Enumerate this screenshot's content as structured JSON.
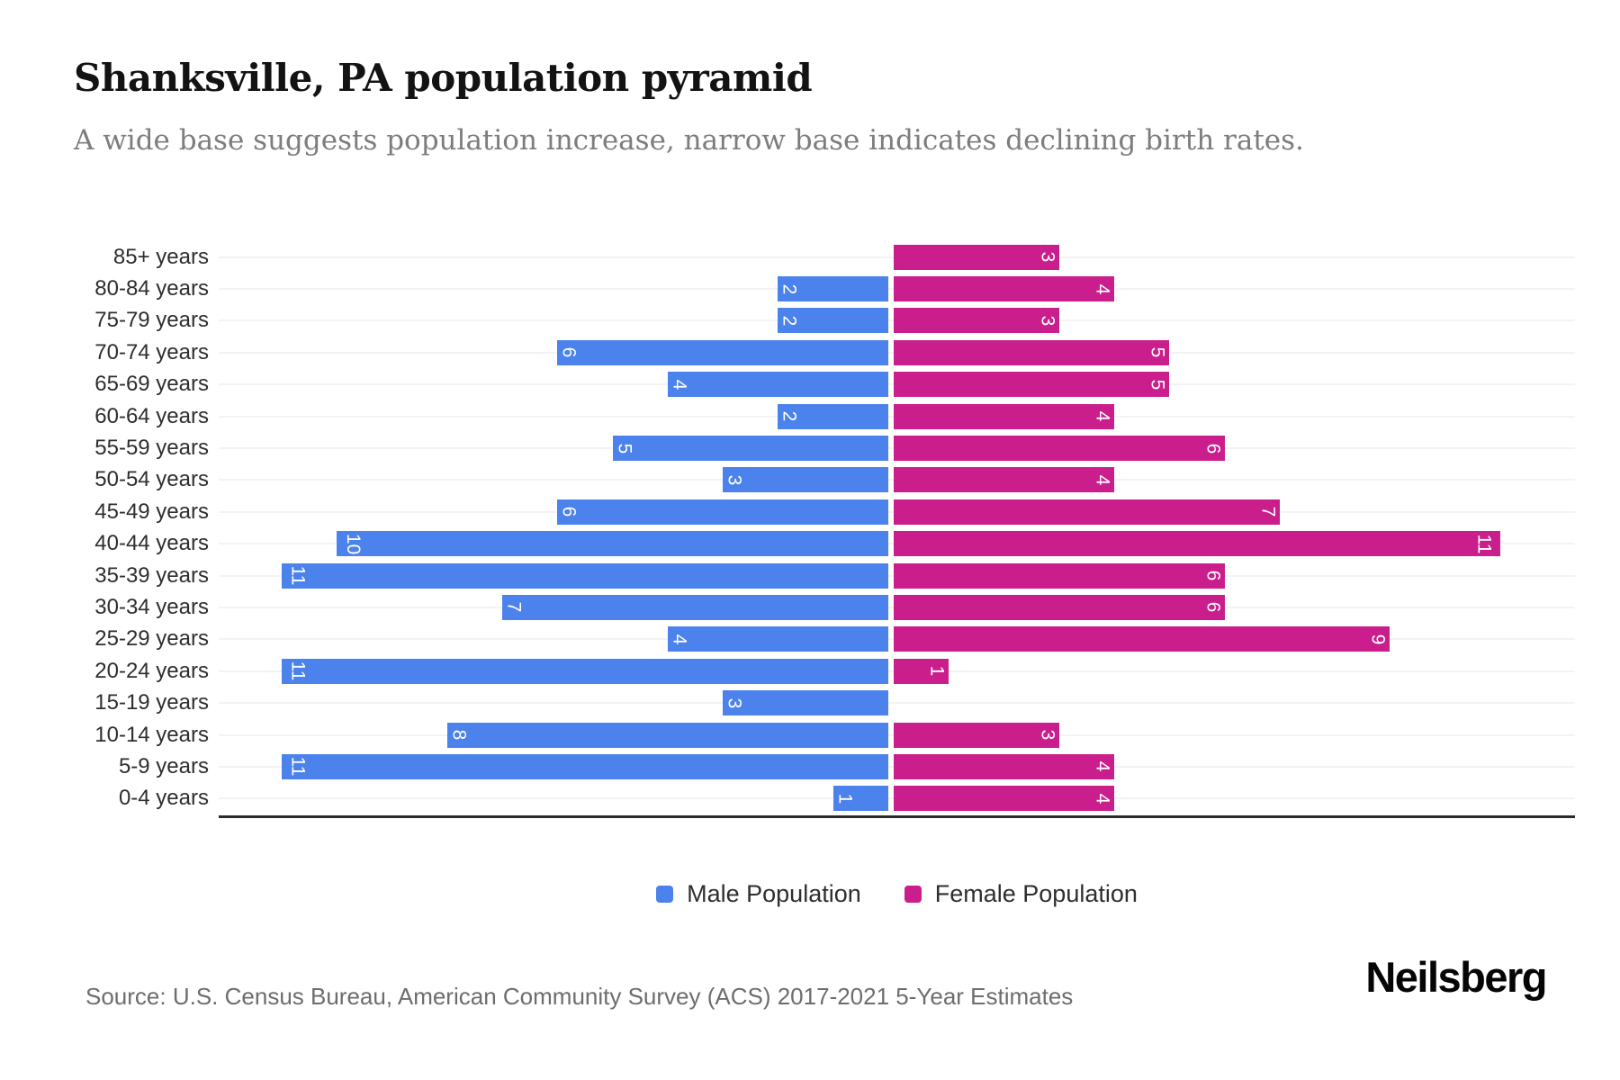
{
  "header": {
    "title": "Shanksville, PA population pyramid",
    "subtitle": "A wide base suggests population increase, narrow base indicates declining birth rates."
  },
  "chart_data": {
    "type": "bar",
    "variant": "population-pyramid",
    "title": "Shanksville, PA population pyramid",
    "xlabel": "",
    "ylabel": "",
    "xlim": [
      0,
      11
    ],
    "grid": "horizontal",
    "legend_position": "bottom",
    "categories": [
      "85+ years",
      "80-84 years",
      "75-79 years",
      "70-74 years",
      "65-69 years",
      "60-64 years",
      "55-59 years",
      "50-54 years",
      "45-49 years",
      "40-44 years",
      "35-39 years",
      "30-34 years",
      "25-29 years",
      "20-24 years",
      "15-19 years",
      "10-14 years",
      "5-9 years",
      "0-4 years"
    ],
    "series": [
      {
        "name": "Male Population",
        "side": "left",
        "color": "#4c82ec",
        "values": [
          0,
          2,
          2,
          6,
          4,
          2,
          5,
          3,
          6,
          10,
          11,
          7,
          4,
          11,
          3,
          8,
          11,
          1
        ]
      },
      {
        "name": "Female Population",
        "side": "right",
        "color": "#cb1e8d",
        "values": [
          3,
          4,
          3,
          5,
          5,
          4,
          6,
          4,
          7,
          11,
          6,
          6,
          9,
          1,
          0,
          3,
          4,
          4
        ]
      }
    ]
  },
  "footer": {
    "source": "Source: U.S. Census Bureau, American Community Survey (ACS) 2017-2021 5-Year Estimates",
    "brand": "Neilsberg"
  },
  "colors": {
    "male": "#4c82ec",
    "female": "#cb1e8d"
  }
}
